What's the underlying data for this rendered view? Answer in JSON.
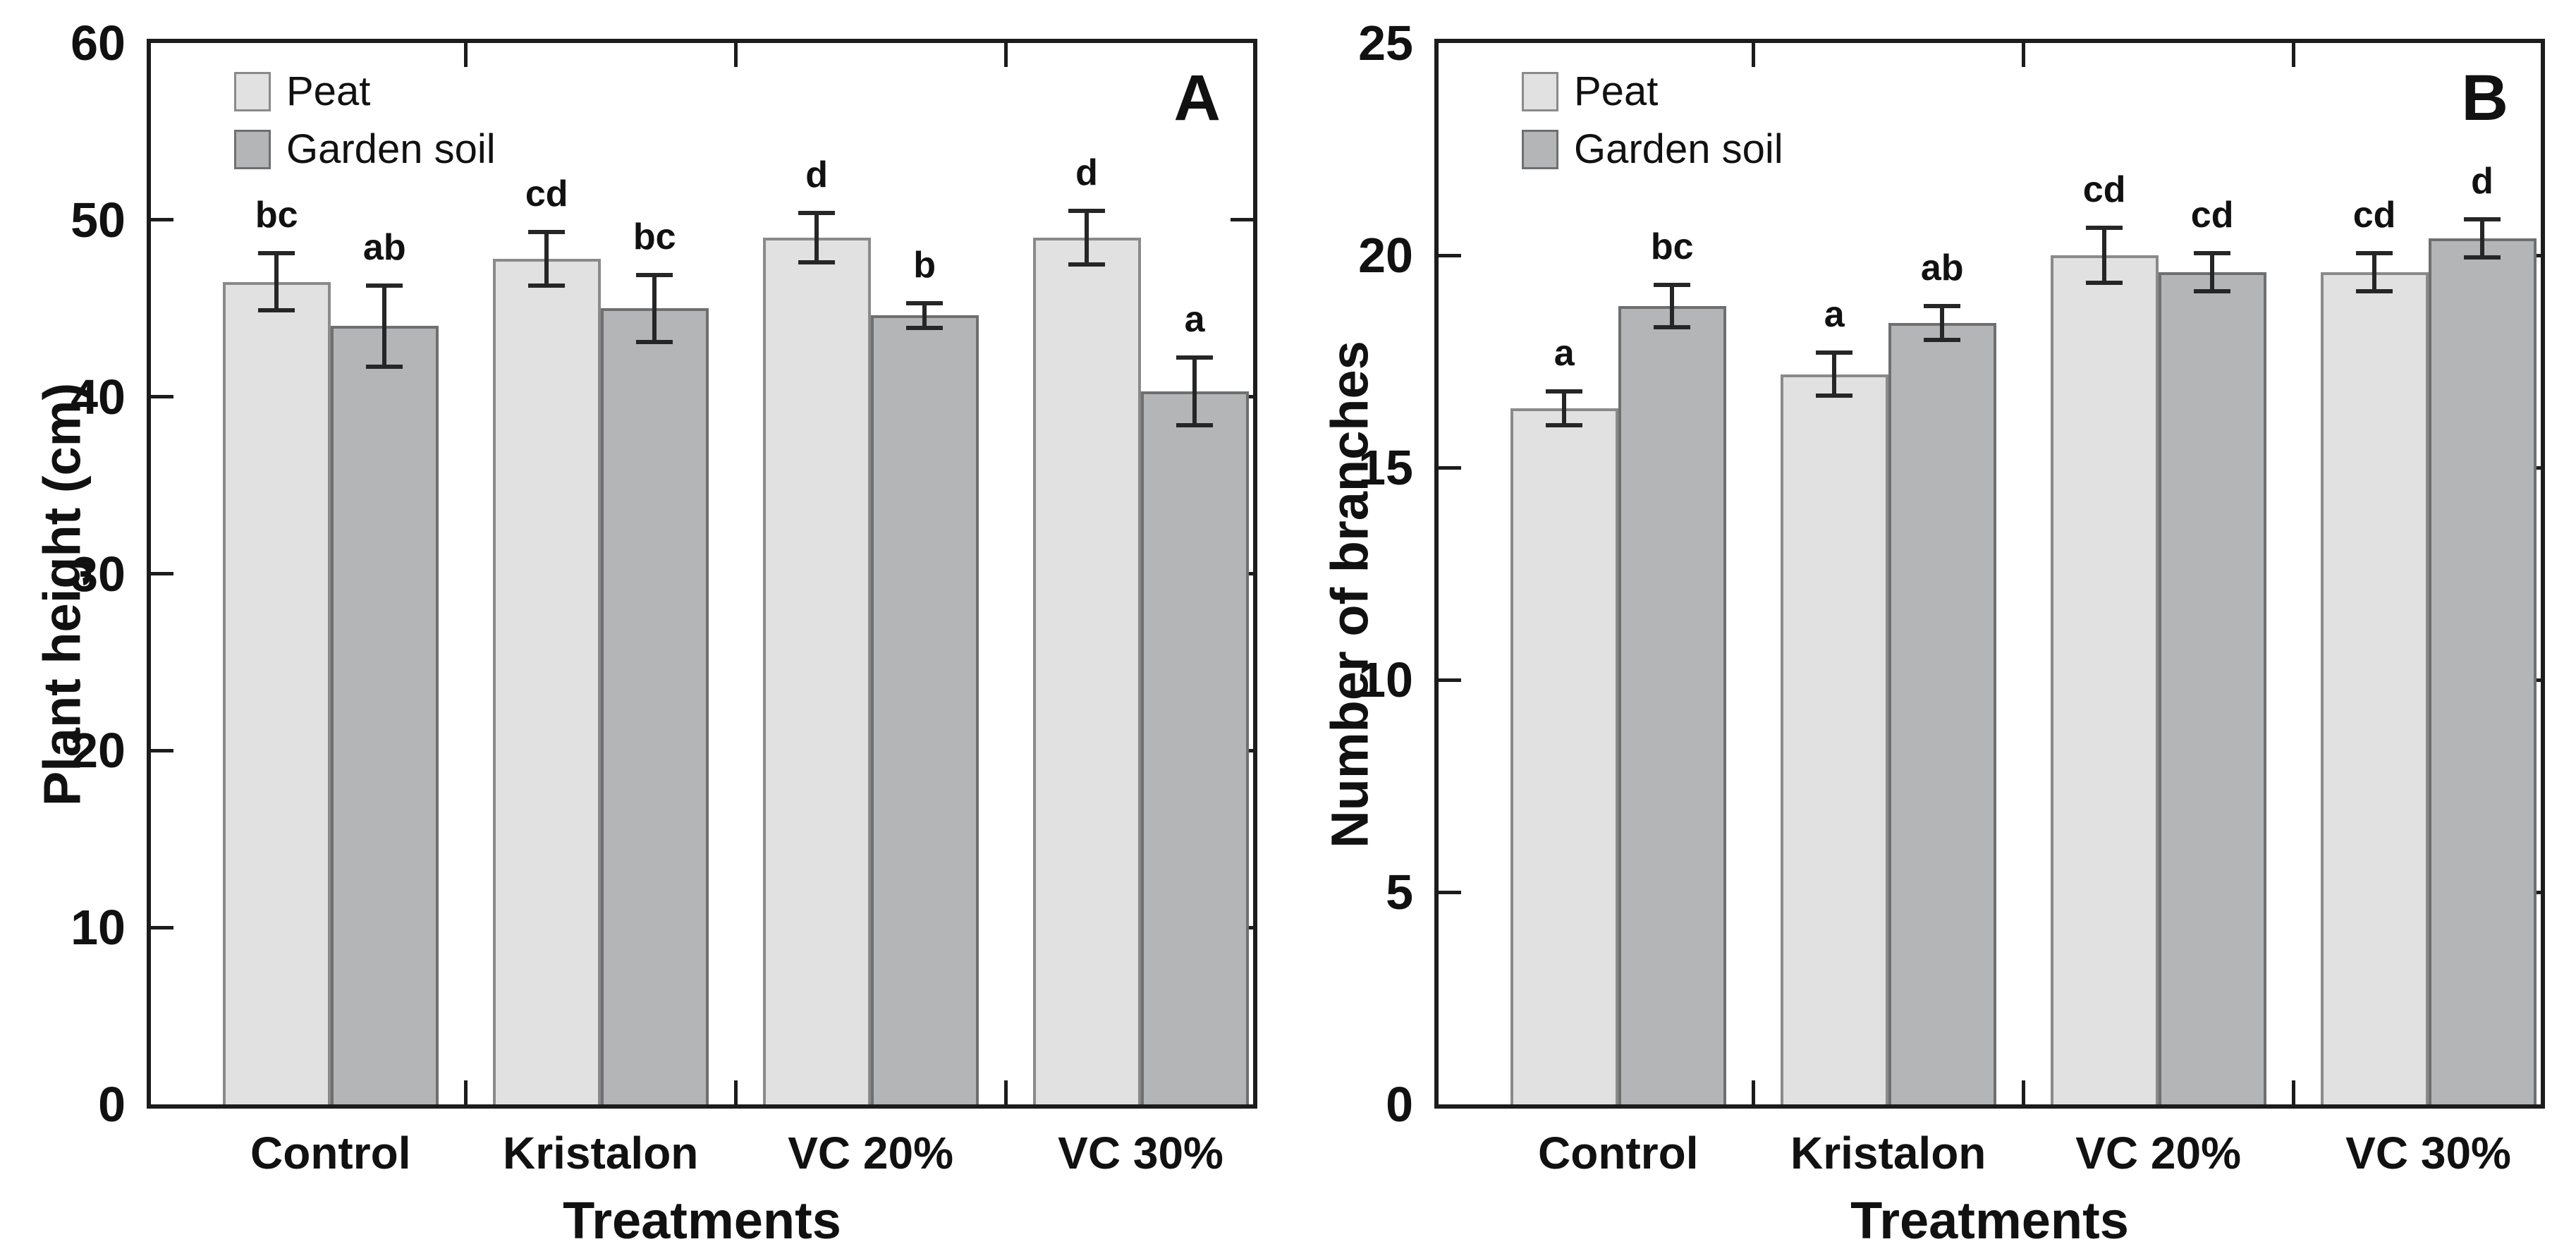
{
  "figure": {
    "background": "#ffffff",
    "panel_count": 2
  },
  "colors": {
    "axis": "#1c1c1c",
    "error_bar": "#262626",
    "text": "#111111",
    "peat_fill": "#e0e1e0",
    "garden_soil_fill": "#b3b5b7",
    "bar_border": "#7b7b7b"
  },
  "chart_data": [
    {
      "type": "bar",
      "panel_label": "A",
      "ylabel": "Plant height (cm)",
      "xlabel": "Treatments",
      "ylim": [
        0,
        60
      ],
      "yticks": [
        0,
        10,
        20,
        30,
        40,
        50,
        60
      ],
      "grid": false,
      "legend_position": "top-left",
      "categories": [
        "Control",
        "Kristalon",
        "VC 20%",
        "VC 30%"
      ],
      "series": [
        {
          "name": "Peat",
          "color": "#e0e1e0",
          "border_color": "#8a8a8a",
          "values": [
            46.5,
            47.8,
            49.0,
            49.0
          ],
          "errors": [
            1.6,
            1.5,
            1.4,
            1.5
          ],
          "sig_letters": [
            "bc",
            "cd",
            "d",
            "d"
          ]
        },
        {
          "name": "Garden soil",
          "color": "#b3b5b7",
          "border_color": "#6f6f6f",
          "values": [
            44.0,
            45.0,
            44.6,
            40.3
          ],
          "errors": [
            2.3,
            1.9,
            0.7,
            1.9
          ],
          "sig_letters": [
            "ab",
            "bc",
            "b",
            "a"
          ]
        }
      ]
    },
    {
      "type": "bar",
      "panel_label": "B",
      "ylabel": "Number of branches",
      "xlabel": "Treatments",
      "ylim": [
        0,
        25
      ],
      "yticks": [
        0,
        5,
        10,
        15,
        20,
        25
      ],
      "grid": false,
      "legend_position": "top-left",
      "categories": [
        "Control",
        "Kristalon",
        "VC 20%",
        "VC 30%"
      ],
      "series": [
        {
          "name": "Peat",
          "color": "#e0e1e0",
          "border_color": "#8a8a8a",
          "values": [
            16.4,
            17.2,
            20.0,
            19.6
          ],
          "errors": [
            0.4,
            0.5,
            0.65,
            0.45
          ],
          "sig_letters": [
            "a",
            "a",
            "cd",
            "cd"
          ]
        },
        {
          "name": "Garden soil",
          "color": "#b3b5b7",
          "border_color": "#6f6f6f",
          "values": [
            18.8,
            18.4,
            19.6,
            20.4
          ],
          "errors": [
            0.5,
            0.4,
            0.45,
            0.45
          ],
          "sig_letters": [
            "bc",
            "ab",
            "cd",
            "d"
          ]
        }
      ]
    }
  ]
}
